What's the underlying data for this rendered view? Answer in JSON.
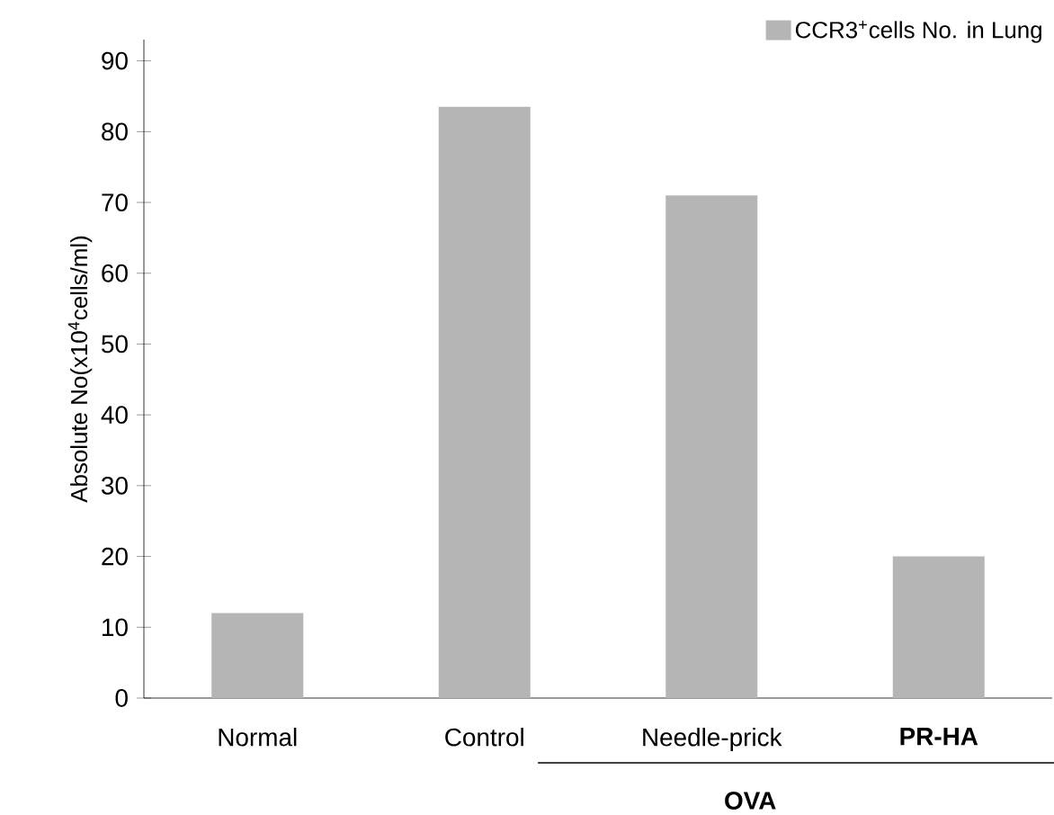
{
  "chart_data": {
    "type": "bar",
    "ylabel": "Absolute No(x10$^{4}$cells/ml)",
    "categories": [
      "Normal",
      "Control",
      "Needle-prick",
      "**PR-HA**"
    ],
    "series": [
      {
        "name": "CCR3$^{+}$cells No. in Lung",
        "color": "#b5b5b5",
        "values": [
          12,
          83.5,
          71,
          20
        ]
      }
    ],
    "ylim": [
      0,
      93
    ],
    "yticks": [
      0,
      10,
      20,
      30,
      40,
      50,
      60,
      70,
      80,
      90
    ],
    "legend": "top right",
    "annotations": [
      "OVA"
    ]
  }
}
